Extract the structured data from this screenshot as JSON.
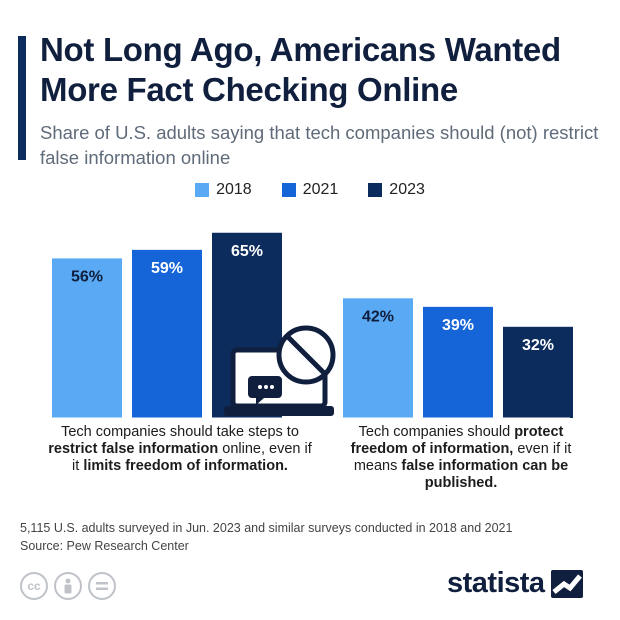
{
  "title": "Not Long Ago, Americans Wanted More Fact Checking Online",
  "subtitle": "Share of U.S. adults saying that tech companies should (not) restrict false information online",
  "legend": [
    {
      "label": "2018",
      "color": "#5aa9f4"
    },
    {
      "label": "2021",
      "color": "#1565d8"
    },
    {
      "label": "2023",
      "color": "#0d2c5e"
    }
  ],
  "captions": {
    "left": {
      "t1": "Tech companies should take steps to ",
      "b1": "restrict false information",
      "t2": " online, even if it ",
      "b2": "limits freedom of information.",
      "t3": ""
    },
    "right": {
      "t1": "Tech companies should ",
      "b1": "protect freedom of information,",
      "t2": " even if it means ",
      "b2": "false information can be published.",
      "t3": ""
    }
  },
  "chart_data": {
    "type": "bar",
    "categories": [
      "Restrict false information",
      "Protect freedom of information"
    ],
    "series": [
      {
        "name": "2018",
        "values": [
          56,
          42
        ],
        "color": "#5aa9f4"
      },
      {
        "name": "2021",
        "values": [
          59,
          39
        ],
        "color": "#1565d8"
      },
      {
        "name": "2023",
        "values": [
          65,
          32
        ],
        "color": "#0d2c5e"
      }
    ],
    "value_suffix": "%",
    "grid": false,
    "legend_position": "top-center"
  },
  "footer": {
    "note": "5,115 U.S. adults surveyed in Jun. 2023 and similar surveys conducted in 2018 and 2021",
    "source": "Source: Pew Research Center",
    "brand": "statista",
    "license_icons": [
      "cc-icon",
      "attribution-icon",
      "no-derivatives-icon"
    ]
  }
}
